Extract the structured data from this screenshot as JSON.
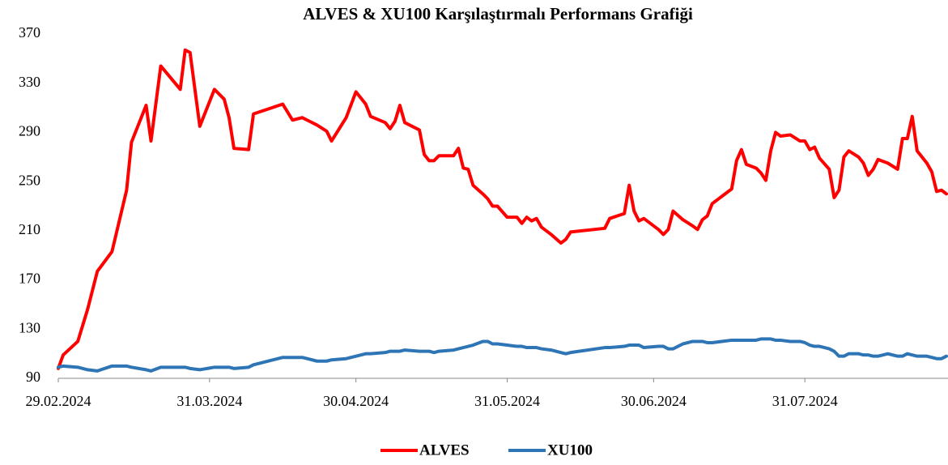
{
  "chart_data": {
    "type": "line",
    "title": "ALVES & XU100 Karşılaştırmalı Performans Grafiği",
    "x": [
      "2024-02-29",
      "2024-03-01",
      "2024-03-04",
      "2024-03-06",
      "2024-03-08",
      "2024-03-11",
      "2024-03-14",
      "2024-03-15",
      "2024-03-18",
      "2024-03-19",
      "2024-03-21",
      "2024-03-25",
      "2024-03-26",
      "2024-03-27",
      "2024-03-29",
      "2024-04-01",
      "2024-04-03",
      "2024-04-04",
      "2024-04-05",
      "2024-04-08",
      "2024-04-09",
      "2024-04-15",
      "2024-04-17",
      "2024-04-19",
      "2024-04-22",
      "2024-04-24",
      "2024-04-25",
      "2024-04-28",
      "2024-04-30",
      "2024-05-02",
      "2024-05-03",
      "2024-05-06",
      "2024-05-07",
      "2024-05-08",
      "2024-05-09",
      "2024-05-10",
      "2024-05-13",
      "2024-05-14",
      "2024-05-15",
      "2024-05-16",
      "2024-05-17",
      "2024-05-20",
      "2024-05-21",
      "2024-05-22",
      "2024-05-23",
      "2024-05-24",
      "2024-05-26",
      "2024-05-27",
      "2024-05-28",
      "2024-05-29",
      "2024-05-31",
      "2024-06-02",
      "2024-06-03",
      "2024-06-04",
      "2024-06-05",
      "2024-06-06",
      "2024-06-07",
      "2024-06-09",
      "2024-06-11",
      "2024-06-12",
      "2024-06-13",
      "2024-06-20",
      "2024-06-21",
      "2024-06-24",
      "2024-06-25",
      "2024-06-26",
      "2024-06-27",
      "2024-06-28",
      "2024-07-01",
      "2024-07-02",
      "2024-07-03",
      "2024-07-04",
      "2024-07-06",
      "2024-07-08",
      "2024-07-09",
      "2024-07-10",
      "2024-07-11",
      "2024-07-12",
      "2024-07-16",
      "2024-07-17",
      "2024-07-18",
      "2024-07-19",
      "2024-07-21",
      "2024-07-22",
      "2024-07-23",
      "2024-07-24",
      "2024-07-25",
      "2024-07-26",
      "2024-07-28",
      "2024-07-30",
      "2024-07-31",
      "2024-08-01",
      "2024-08-02",
      "2024-08-03",
      "2024-08-05",
      "2024-08-06",
      "2024-08-07",
      "2024-08-08",
      "2024-08-09",
      "2024-08-11",
      "2024-08-12",
      "2024-08-13",
      "2024-08-14",
      "2024-08-15",
      "2024-08-17",
      "2024-08-19",
      "2024-08-20",
      "2024-08-21",
      "2024-08-22",
      "2024-08-23",
      "2024-08-25",
      "2024-08-26",
      "2024-08-27",
      "2024-08-28",
      "2024-08-29"
    ],
    "series": [
      {
        "name": "ALVES",
        "color": "#ff0000",
        "values": [
          98,
          109,
          120,
          146,
          177,
          193,
          243,
          282,
          312,
          283,
          344,
          325,
          357,
          355,
          295,
          325,
          317,
          302,
          277,
          276,
          305,
          313,
          300,
          302,
          296,
          291,
          283,
          302,
          323,
          313,
          303,
          298,
          293,
          299,
          312,
          298,
          292,
          272,
          267,
          267,
          271,
          271,
          277,
          261,
          260,
          247,
          240,
          236,
          230,
          230,
          221,
          221,
          216,
          221,
          218,
          220,
          213,
          207,
          200,
          203,
          209,
          212,
          220,
          224,
          247,
          226,
          218,
          220,
          211,
          207,
          211,
          226,
          219,
          214,
          211,
          219,
          222,
          232,
          244,
          267,
          276,
          264,
          261,
          257,
          251,
          275,
          290,
          287,
          288,
          283,
          283,
          276,
          278,
          269,
          260,
          237,
          243,
          270,
          275,
          270,
          265,
          255,
          260,
          268,
          265,
          260,
          285,
          285,
          303,
          275,
          265,
          258,
          242,
          243,
          240
        ]
      },
      {
        "name": "XU100",
        "color": "#2e75b6",
        "values": [
          99,
          100,
          99,
          97,
          96,
          100,
          100,
          99,
          97,
          96,
          99,
          99,
          99,
          98,
          97,
          99,
          99,
          99,
          98,
          99,
          101,
          107,
          107,
          107,
          104,
          104,
          105,
          106,
          108,
          110,
          110,
          111,
          112,
          112,
          112,
          113,
          112,
          112,
          112,
          111,
          112,
          113,
          114,
          115,
          116,
          117,
          120,
          120,
          118,
          118,
          117,
          116,
          116,
          115,
          115,
          115,
          114,
          113,
          111,
          110,
          111,
          115,
          115,
          116,
          117,
          117,
          117,
          115,
          116,
          116,
          114,
          114,
          118,
          120,
          120,
          120,
          119,
          119,
          121,
          121,
          121,
          121,
          121,
          122,
          122,
          122,
          121,
          121,
          120,
          120,
          119,
          117,
          116,
          116,
          114,
          112,
          108,
          108,
          110,
          110,
          109,
          109,
          108,
          108,
          110,
          108,
          108,
          110,
          109,
          108,
          108,
          107,
          106,
          106,
          108
        ]
      }
    ],
    "xlim": [
      "2024-02-29",
      "2024-08-29"
    ],
    "xticks": [
      {
        "value": "2024-02-29",
        "label": "29.02.2024"
      },
      {
        "value": "2024-03-31",
        "label": "31.03.2024"
      },
      {
        "value": "2024-04-30",
        "label": "30.04.2024"
      },
      {
        "value": "2024-05-31",
        "label": "31.05.2024"
      },
      {
        "value": "2024-06-30",
        "label": "30.06.2024"
      },
      {
        "value": "2024-07-31",
        "label": "31.07.2024"
      }
    ],
    "ylim": [
      90,
      370
    ],
    "yticks": [
      90,
      130,
      170,
      210,
      250,
      290,
      330,
      370
    ],
    "grid": false,
    "legend": "bottom"
  }
}
